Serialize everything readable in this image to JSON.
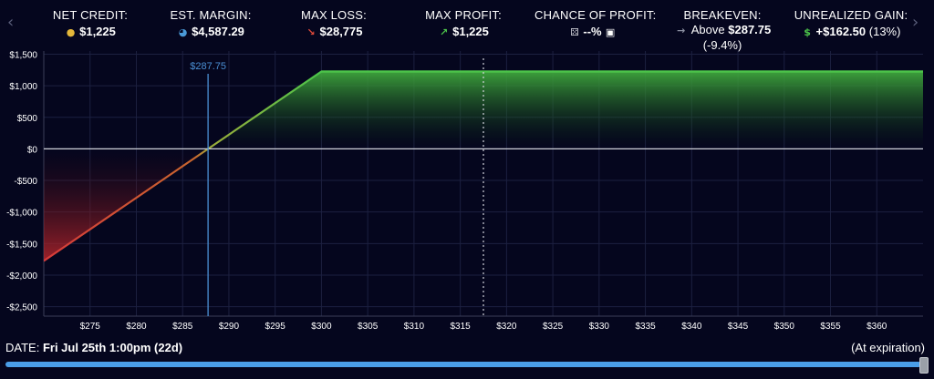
{
  "nav": {
    "prev_glyph": "‹",
    "next_glyph": "›"
  },
  "stats": {
    "net_credit": {
      "label": "NET CREDIT:",
      "icon": "coins-icon",
      "value": "$1,225"
    },
    "est_margin": {
      "label": "EST. MARGIN:",
      "icon": "pie-chart-icon",
      "value": "$4,587.29"
    },
    "max_loss": {
      "label": "MAX LOSS:",
      "icon": "arrow-down-right-icon",
      "value": "$28,775"
    },
    "max_profit": {
      "label": "MAX PROFIT:",
      "icon": "arrow-up-right-icon",
      "value": "$1,225"
    },
    "chance": {
      "label": "CHANCE OF PROFIT:",
      "icon": "dice-icon",
      "value": "--%",
      "lock_icon": "lock-icon"
    },
    "breakeven": {
      "label": "BREAKEVEN:",
      "icon": "arrow-right-icon",
      "prefix": "Above",
      "value": "$287.75",
      "sub": "(-9.4%)"
    },
    "unrealized": {
      "label": "UNREALIZED GAIN:",
      "icon": "money-bag-icon",
      "value": "+$162.50",
      "sub": "(13%)"
    }
  },
  "chart_data": {
    "type": "area",
    "x": [
      270,
      287.75,
      300,
      365
    ],
    "y": [
      -1775,
      0,
      1225,
      1225
    ],
    "xlim": [
      270,
      365
    ],
    "ylim": [
      -2650,
      1550
    ],
    "x_ticks": [
      275,
      280,
      285,
      290,
      295,
      300,
      305,
      310,
      315,
      320,
      325,
      330,
      335,
      340,
      345,
      350,
      355,
      360
    ],
    "x_tick_labels": [
      "$275",
      "$280",
      "$285",
      "$290",
      "$295",
      "$300",
      "$305",
      "$310",
      "$315",
      "$320",
      "$325",
      "$330",
      "$335",
      "$340",
      "$345",
      "$350",
      "$355",
      "$360"
    ],
    "y_ticks": [
      1500,
      1000,
      500,
      0,
      -500,
      -1000,
      -1500,
      -2000,
      -2500
    ],
    "y_tick_labels": [
      "$1,500",
      "$1,000",
      "$500",
      "$0",
      "-$500",
      "-$1,000",
      "-$1,500",
      "-$2,000",
      "-$2,500"
    ],
    "breakeven_line": {
      "x": 287.75,
      "label": "$287.75"
    },
    "current_price_line": {
      "x": 317.5
    },
    "grid": true,
    "colors": {
      "profit": "#4cc34a",
      "loss": "#d63a3a",
      "breakeven": "#4a8fd4",
      "zero_line": "#d0d2da",
      "grid": "#1c2040"
    }
  },
  "footer": {
    "date_prefix": "DATE:",
    "date_value": "Fri Jul 25th 1:00pm (22d)",
    "expiry_label": "(At expiration)",
    "slider_value_fraction": 1.0
  }
}
